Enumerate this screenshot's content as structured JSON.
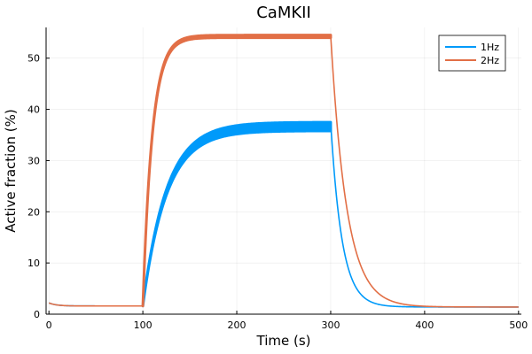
{
  "chart_data": {
    "type": "line",
    "title": "CaMKII",
    "xlabel": "Time (s)",
    "ylabel": "Active fraction (%)",
    "xlim": [
      -3,
      503
    ],
    "ylim": [
      0,
      56
    ],
    "xticks": [
      0,
      100,
      200,
      300,
      400,
      500
    ],
    "yticks": [
      0,
      10,
      20,
      30,
      40,
      50
    ],
    "grid": true,
    "legend_position": "top-right",
    "stimulus_window": [
      100,
      300
    ],
    "series": [
      {
        "name": "1Hz",
        "color": "#009AFA",
        "baseline_start": 2.2,
        "baseline_end": 1.6,
        "plateau_upper": 37.5,
        "plateau_lower": 35.8,
        "rise_tau": 25,
        "decay_tau": 12,
        "final": 1.4
      },
      {
        "name": "2Hz",
        "color": "#E26F46",
        "baseline_start": 2.2,
        "baseline_end": 1.6,
        "plateau_upper": 54.5,
        "plateau_lower": 54.0,
        "rise_tau": 10,
        "decay_tau": 17,
        "final": 1.4
      }
    ]
  }
}
